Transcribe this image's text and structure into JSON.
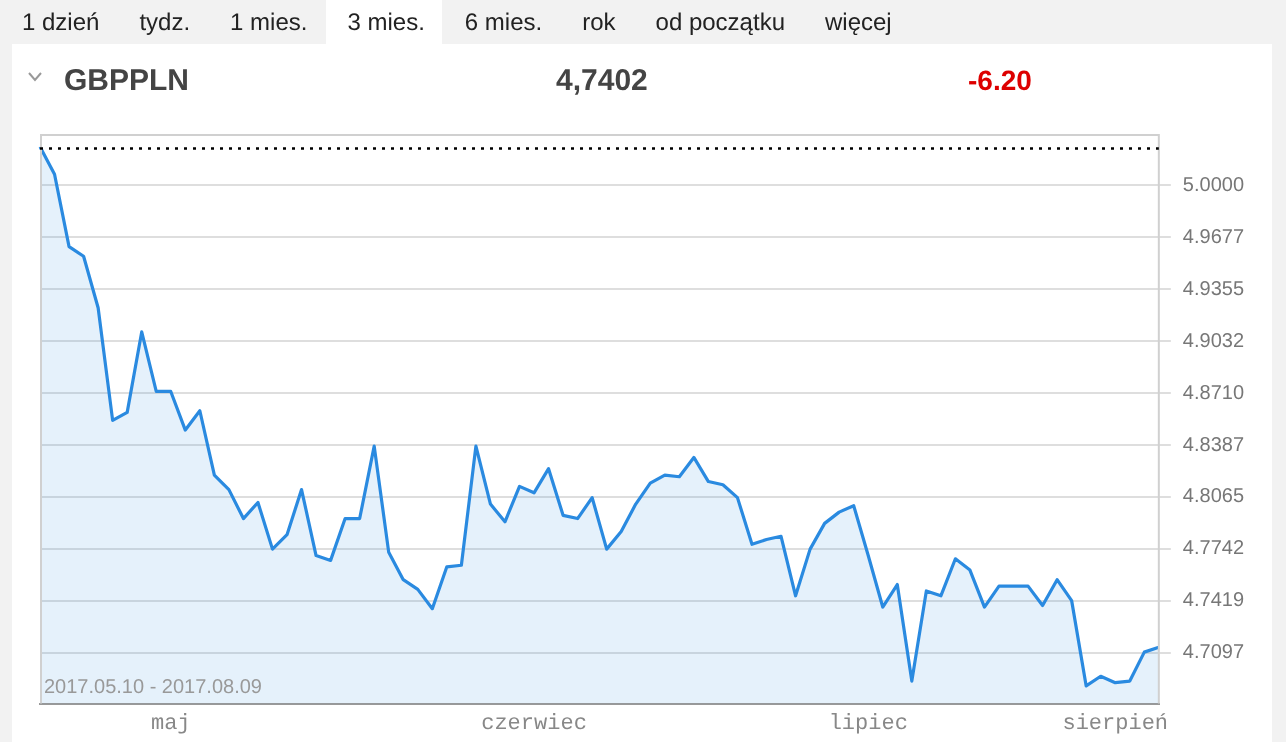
{
  "chart_data": {
    "type": "area",
    "title": "GBPPLN",
    "annotations": [
      "1 dzień",
      "tydz.",
      "1 mies.",
      "3 mies.",
      "6 mies.",
      "rok",
      "od początku",
      "więcej",
      "4,7402",
      "-6.20",
      "2017.05.10 - 2017.08.09"
    ],
    "categories": [
      null,
      null,
      null,
      null,
      null,
      null,
      null,
      null,
      null,
      "maj",
      null,
      null,
      null,
      null,
      null,
      null,
      null,
      null,
      null,
      null,
      null,
      null,
      null,
      null,
      null,
      null,
      null,
      null,
      null,
      null,
      null,
      null,
      null,
      null,
      "czerwiec",
      null,
      null,
      null,
      null,
      null,
      null,
      null,
      null,
      null,
      null,
      null,
      null,
      null,
      null,
      null,
      null,
      null,
      null,
      null,
      null,
      null,
      null,
      "lipiec",
      null,
      null,
      null,
      null,
      null,
      null,
      null,
      null,
      null,
      null,
      null,
      null,
      null,
      null,
      null,
      null,
      "sierpień",
      null,
      null,
      null
    ],
    "series": [
      {
        "color": "#2a8ae0",
        "values": [
          5.024,
          5.007,
          4.962,
          4.956,
          4.924,
          4.854,
          4.859,
          4.909,
          4.872,
          4.872,
          4.848,
          4.86,
          4.82,
          4.811,
          4.793,
          4.803,
          4.774,
          4.783,
          4.811,
          4.77,
          4.767,
          4.793,
          4.793,
          4.838,
          4.772,
          4.755,
          4.749,
          4.737,
          4.763,
          4.764,
          4.838,
          4.802,
          4.791,
          4.813,
          4.809,
          4.824,
          4.795,
          4.793,
          4.806,
          4.774,
          4.785,
          4.802,
          4.815,
          4.82,
          4.819,
          4.831,
          4.816,
          4.814,
          4.806,
          4.777,
          4.78,
          4.782,
          4.745,
          4.774,
          4.79,
          4.797,
          4.801,
          4.77,
          4.738,
          4.752,
          4.692,
          4.748,
          4.745,
          4.768,
          4.761,
          4.738,
          4.751,
          4.751,
          4.751,
          4.739,
          4.755,
          4.742,
          4.689,
          4.695,
          4.691,
          4.692,
          4.71,
          4.713
        ]
      }
    ],
    "ylim": [
      4.678,
      5.032
    ],
    "yticks": [
      {
        "value": 5,
        "label": "5.0000"
      },
      4.9677,
      4.9355,
      4.9032,
      {
        "value": 4.871,
        "label": "4.8710"
      },
      4.8387,
      4.8065,
      4.7742,
      4.7419,
      4.7097
    ],
    "ref_lines": [
      {
        "axis": "y",
        "value": 5.023,
        "color": "#000000",
        "line_style": "dotted"
      }
    ],
    "grid": "y",
    "legend": false,
    "marker": "none",
    "line_style": "solid"
  }
}
